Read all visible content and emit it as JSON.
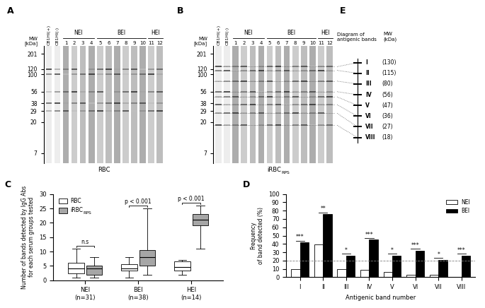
{
  "blots": [
    {
      "panel": "A",
      "mw_label": "MW\n[kDa]",
      "markers": [
        201,
        120,
        100,
        56,
        38,
        29,
        20,
        7
      ],
      "ylim": [
        5,
        260
      ],
      "lanes": [
        "CB1HI(+)",
        "CB1HI(-)",
        "1",
        "2",
        "3",
        "4",
        "5",
        "6",
        "7",
        "8",
        "9",
        "10",
        "11",
        "12"
      ],
      "groups": [
        {
          "name": "NEI",
          "first": "1",
          "last": "4"
        },
        {
          "name": "BEI",
          "first": "5",
          "last": "10"
        },
        {
          "name": "HEI",
          "first": "11",
          "last": "12"
        }
      ],
      "caption": "RBC"
    },
    {
      "panel": "B",
      "mw_label": "MW\n[kDa]",
      "markers": [
        201,
        120,
        100,
        56,
        38,
        29,
        20,
        7
      ],
      "ylim": [
        5,
        260
      ],
      "lanes": [
        "CB1HI(+)",
        "CB1HI(-)",
        "1",
        "2",
        "3",
        "4",
        "5",
        "6",
        "7",
        "8",
        "9",
        "10",
        "11",
        "12"
      ],
      "groups": [
        {
          "name": "NEI",
          "first": "1",
          "last": "4"
        },
        {
          "name": "BEI",
          "first": "5",
          "last": "10"
        },
        {
          "name": "HEI",
          "first": "11",
          "last": "12"
        }
      ],
      "caption": "iRBC",
      "caption_subscript": "RPS"
    }
  ],
  "diagram": {
    "panel": "E",
    "title": "Diagram of\nantigenic bands",
    "mw_header": "MW\n(kDa)",
    "bands": [
      {
        "label": "I",
        "mw": 130,
        "mw_label": "(130)"
      },
      {
        "label": "II",
        "mw": 115,
        "mw_label": "(115)"
      },
      {
        "label": "III",
        "mw": 80,
        "mw_label": "(80)"
      },
      {
        "label": "IV",
        "mw": 56,
        "mw_label": "(56)"
      },
      {
        "label": "V",
        "mw": 47,
        "mw_label": "(47)"
      },
      {
        "label": "VI",
        "mw": 36,
        "mw_label": "(36)"
      },
      {
        "label": "VII",
        "mw": 27,
        "mw_label": "(27)"
      },
      {
        "label": "VIII",
        "mw": 18,
        "mw_label": "(18)"
      }
    ]
  },
  "chart_data": [
    {
      "panel": "C",
      "type": "box",
      "categories": [
        "NEI\n(n=31)",
        "BEI\n(n=38)",
        "HEI\n(n=14)"
      ],
      "y_label": "Number of bands detected by IgG Abs\nfor each serum groups tested",
      "ylim": [
        0,
        30
      ],
      "yticks": [
        0,
        5,
        10,
        15,
        20,
        25,
        30
      ],
      "legend": "upper left",
      "series": [
        {
          "name": "RBC",
          "color": "#ffffff",
          "boxes": [
            {
              "min": 1,
              "q1": 2.5,
              "median": 4,
              "q3": 6,
              "max": 11
            },
            {
              "min": 1,
              "q1": 3.5,
              "median": 4,
              "q3": 5.5,
              "max": 8
            },
            {
              "min": 2,
              "q1": 3.5,
              "median": 4.5,
              "q3": 6.5,
              "max": 7
            }
          ]
        },
        {
          "name": "iRBC",
          "name_subscript": "RPS",
          "color": "#a6a6a6",
          "boxes": [
            {
              "min": 1,
              "q1": 2,
              "median": 4,
              "q3": 5,
              "max": 8
            },
            {
              "min": 2,
              "q1": 5,
              "median": 8,
              "q3": 10.5,
              "max": 25
            },
            {
              "min": 11,
              "q1": 19,
              "median": 21,
              "q3": 23,
              "max": 26
            }
          ]
        }
      ],
      "comparisons": [
        "n.s",
        "p < 0.001",
        "p < 0.001"
      ]
    },
    {
      "panel": "D",
      "type": "bar",
      "categories": [
        "I",
        "II",
        "III",
        "IV",
        "V",
        "VI",
        "VII",
        "VIII"
      ],
      "x_label": "Antigenic band number",
      "y_label": "Frequency\nof band detected (%)",
      "ylim": [
        0,
        100
      ],
      "yticks": [
        0,
        10,
        20,
        30,
        40,
        50,
        60,
        70,
        80,
        90,
        100
      ],
      "legend": "upper right",
      "reference_line": 20,
      "series": [
        {
          "name": "NEI",
          "color": "#ffffff",
          "values": [
            10,
            39,
            10,
            9,
            6,
            3,
            3,
            0
          ]
        },
        {
          "name": "BEI",
          "color": "#000000",
          "values": [
            42,
            76,
            26,
            45,
            26,
            32,
            21,
            26
          ]
        }
      ],
      "significance": [
        "***",
        "**",
        "*",
        "***",
        "*",
        "***",
        "*",
        "***"
      ]
    }
  ]
}
